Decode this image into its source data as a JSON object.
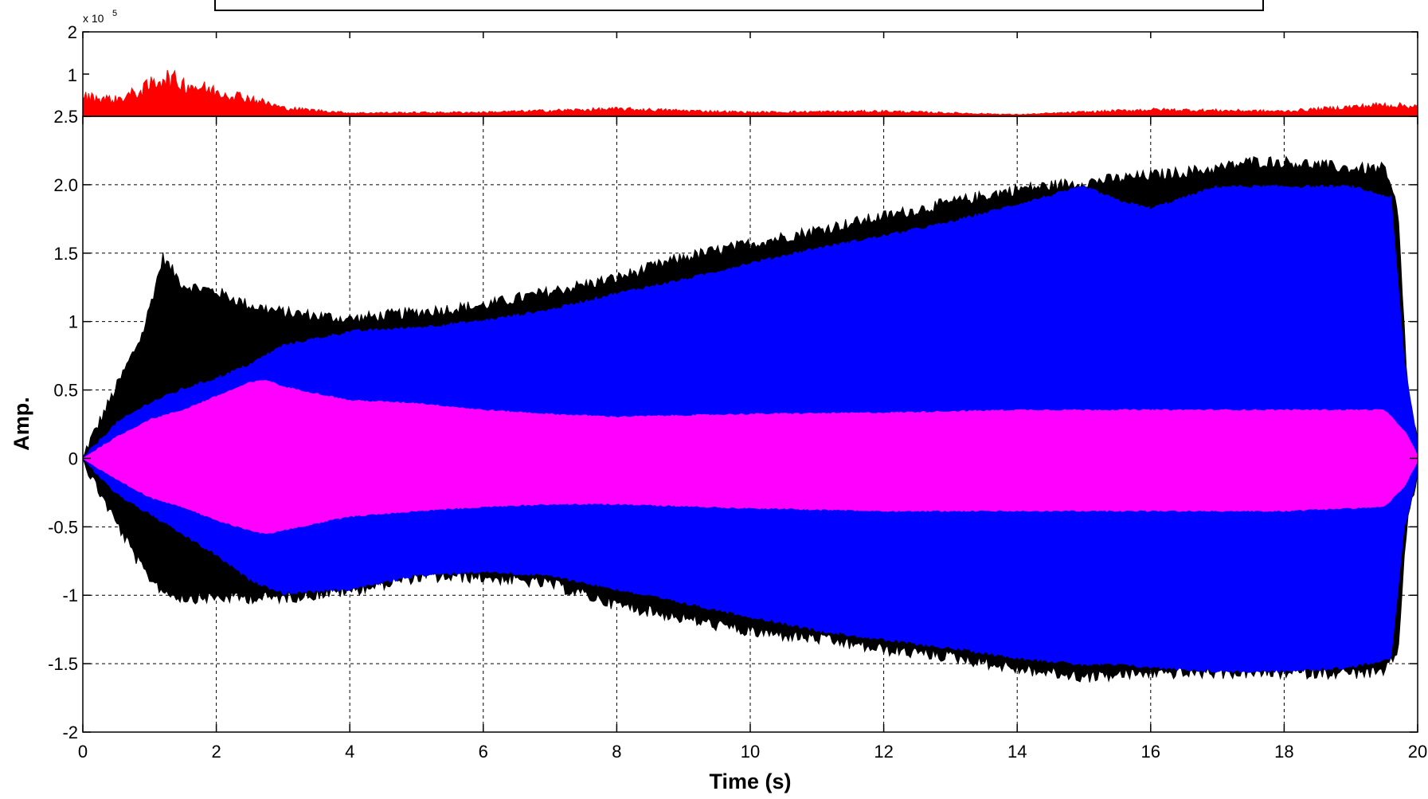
{
  "chart_data": [
    {
      "type": "area",
      "panel": "inset-top",
      "ylim": [
        0,
        200000
      ],
      "y_ticks": [
        "2",
        "1"
      ],
      "y_multiplier": "x 10",
      "y_multiplier_exponent": "5",
      "grid": false,
      "colors": {
        "signal": "#ff0000"
      },
      "series": [
        {
          "x": [
            0,
            0.5,
            0.9,
            1.2,
            1.5,
            2.0,
            2.5,
            3.0,
            4.0,
            6.0,
            8.0,
            10.0,
            12.0,
            14.0,
            16.0,
            18.0,
            19.5,
            20.0
          ],
          "max": [
            60000,
            50000,
            80000,
            120000,
            100000,
            75000,
            55000,
            25000,
            10000,
            12000,
            22000,
            12000,
            15000,
            5000,
            20000,
            15000,
            35000,
            30000
          ]
        }
      ]
    },
    {
      "type": "area",
      "panel": "main",
      "xlabel": "Time (s)",
      "ylabel": "Amp.",
      "xlim": [
        0,
        20
      ],
      "ylim": [
        -2,
        2.5
      ],
      "x_ticks": [
        "0",
        "2",
        "4",
        "6",
        "8",
        "10",
        "12",
        "14",
        "16",
        "18",
        "20"
      ],
      "y_ticks": [
        "2.5",
        "2.0",
        "1.5",
        "1",
        "0.5",
        "0",
        "-0.5",
        "-1",
        "-1.5",
        "-2"
      ],
      "grid": true,
      "colors": {
        "black": "#000000",
        "blue": "#0000ff",
        "magenta": "#ff00ff"
      },
      "series": [
        {
          "color": "black",
          "x": [
            0,
            0.5,
            0.9,
            1.2,
            1.5,
            2.0,
            2.5,
            3.0,
            4.0,
            5.0,
            6.0,
            7.0,
            8.0,
            9.0,
            10.0,
            11.0,
            12.0,
            13.0,
            14.0,
            15.0,
            16.0,
            17.0,
            17.5,
            18.0,
            19.0,
            19.5,
            19.7,
            19.85,
            20.0
          ],
          "upper": [
            0,
            0.5,
            0.9,
            1.45,
            1.25,
            1.2,
            1.1,
            1.05,
            1.0,
            1.05,
            1.1,
            1.2,
            1.3,
            1.45,
            1.55,
            1.65,
            1.75,
            1.85,
            1.95,
            2.0,
            2.05,
            2.1,
            2.15,
            2.15,
            2.1,
            2.1,
            1.8,
            0.5,
            0.1
          ],
          "lower": [
            0,
            -0.45,
            -0.8,
            -0.95,
            -1.0,
            -1.0,
            -1.0,
            -1.0,
            -0.95,
            -0.85,
            -0.85,
            -0.9,
            -1.05,
            -1.15,
            -1.25,
            -1.3,
            -1.38,
            -1.43,
            -1.52,
            -1.58,
            -1.55,
            -1.55,
            -1.55,
            -1.55,
            -1.55,
            -1.55,
            -1.4,
            -0.4,
            -0.1
          ]
        },
        {
          "color": "blue",
          "x": [
            0,
            0.5,
            1.0,
            1.5,
            2.0,
            2.5,
            3.0,
            4.0,
            5.0,
            6.0,
            7.0,
            8.0,
            9.0,
            10.0,
            11.0,
            12.0,
            13.0,
            14.0,
            15.0,
            15.5,
            16.0,
            17.0,
            18.0,
            19.0,
            19.6,
            19.8,
            20.0
          ],
          "upper": [
            0,
            0.25,
            0.4,
            0.5,
            0.58,
            0.68,
            0.82,
            0.92,
            0.95,
            1.0,
            1.08,
            1.2,
            1.3,
            1.42,
            1.53,
            1.62,
            1.72,
            1.85,
            1.98,
            1.88,
            1.82,
            1.98,
            1.98,
            1.98,
            1.9,
            0.7,
            0.1
          ],
          "lower": [
            0,
            -0.25,
            -0.4,
            -0.55,
            -0.7,
            -0.88,
            -0.98,
            -0.95,
            -0.85,
            -0.82,
            -0.85,
            -0.95,
            -1.05,
            -1.15,
            -1.25,
            -1.32,
            -1.38,
            -1.45,
            -1.5,
            -1.5,
            -1.52,
            -1.55,
            -1.55,
            -1.52,
            -1.45,
            -0.5,
            -0.1
          ]
        },
        {
          "color": "magenta",
          "x": [
            0,
            0.5,
            1.0,
            1.5,
            2.0,
            2.5,
            2.75,
            3.0,
            4.0,
            5.0,
            6.0,
            7.0,
            8.0,
            10.0,
            12.0,
            14.0,
            16.0,
            18.0,
            19.5,
            19.8,
            20.0
          ],
          "upper": [
            0,
            0.15,
            0.28,
            0.35,
            0.45,
            0.55,
            0.57,
            0.52,
            0.42,
            0.4,
            0.35,
            0.32,
            0.3,
            0.32,
            0.33,
            0.35,
            0.35,
            0.35,
            0.35,
            0.2,
            0.02
          ],
          "lower": [
            0,
            -0.15,
            -0.28,
            -0.35,
            -0.45,
            -0.52,
            -0.55,
            -0.52,
            -0.42,
            -0.38,
            -0.35,
            -0.33,
            -0.33,
            -0.36,
            -0.38,
            -0.38,
            -0.38,
            -0.38,
            -0.35,
            -0.2,
            -0.02
          ]
        }
      ]
    }
  ]
}
